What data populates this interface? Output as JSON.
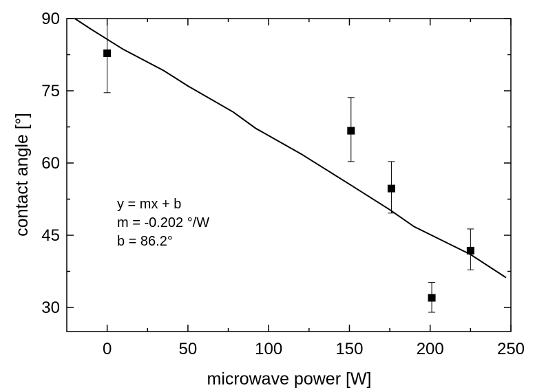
{
  "chart_data": {
    "type": "scatter",
    "title": "",
    "xlabel": "microwave power [W]",
    "ylabel": "contact angle [°]",
    "xlim": [
      -25,
      250
    ],
    "ylim": [
      25,
      90
    ],
    "xticks": [
      0,
      50,
      100,
      150,
      200,
      250
    ],
    "yticks": [
      30,
      45,
      60,
      75,
      90
    ],
    "grid": false,
    "series": [
      {
        "type": "scatter",
        "marker": "square",
        "color": "#000000",
        "points": [
          {
            "x": 0,
            "y": 82.8,
            "err_low": 74.6,
            "err_high": 90.0
          },
          {
            "x": 151,
            "y": 66.7,
            "err_low": 60.3,
            "err_high": 73.6
          },
          {
            "x": 176,
            "y": 54.7,
            "err_low": 49.6,
            "err_high": 60.3
          },
          {
            "x": 201,
            "y": 32.0,
            "err_low": 29.0,
            "err_high": 35.2
          },
          {
            "x": 225,
            "y": 41.8,
            "err_low": 37.8,
            "err_high": 46.3
          }
        ]
      },
      {
        "type": "line",
        "color": "#000000",
        "x": [
          -20,
          -10,
          10,
          35,
          50,
          78,
          92,
          120,
          150,
          175,
          190,
          225,
          247
        ],
        "y": [
          90,
          87.8,
          83.6,
          79.2,
          76.0,
          70.6,
          67.2,
          61.9,
          55.6,
          50.3,
          46.8,
          41.0,
          36.2
        ]
      }
    ],
    "annotations": [
      "y = mx + b",
      "m = -0.202 °/W",
      "b = 86.2°"
    ]
  }
}
